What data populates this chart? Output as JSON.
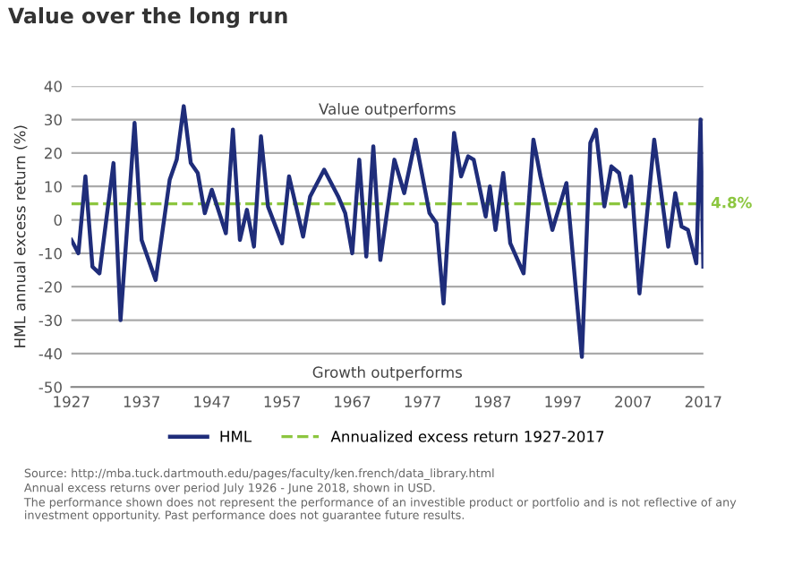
{
  "chart_data": {
    "type": "line",
    "title": "Value over the long run",
    "ylabel": "HML annual excess return (%)",
    "series": [
      {
        "name": "HML",
        "color": "#1f2d7a",
        "x": [
          1927,
          1928,
          1929,
          1930,
          1931,
          1933,
          1934,
          1936,
          1937,
          1939,
          1941,
          1942,
          1943,
          1944,
          1945,
          1946,
          1947,
          1949,
          1950,
          1951,
          1952,
          1953,
          1954,
          1955,
          1957,
          1958,
          1960,
          1961,
          1963,
          1965,
          1966,
          1967,
          1968,
          1969,
          1970,
          1971,
          1973,
          1974.4,
          1976,
          1978,
          1979,
          1980,
          1981.5,
          1982.5,
          1983.5,
          1984.3,
          1986,
          1986.6,
          1987.4,
          1988.5,
          1989.5,
          1991.4,
          1992.8,
          1993.8,
          1995.5,
          1997.5,
          1999.7,
          2000.9,
          2001.7,
          2002.9,
          2003.9,
          2005,
          2005.9,
          2006.7,
          2007.9,
          2010,
          2012,
          2013,
          2013.9,
          2014.8,
          2016,
          2016.6,
          2017
        ],
        "values": [
          -6,
          -10,
          13,
          -14,
          -16,
          17,
          -30,
          29,
          -6,
          -18,
          12,
          18,
          34,
          17,
          14,
          2,
          9,
          -4,
          27,
          -6,
          3,
          -8,
          25,
          4,
          -7,
          13,
          -5,
          7,
          15,
          7,
          2,
          -10,
          18,
          -11,
          22,
          -12,
          18,
          8,
          24,
          2,
          -1,
          -25,
          26,
          13,
          19,
          18,
          1,
          10,
          -3,
          14,
          -7,
          -16,
          24,
          13,
          -3,
          11,
          -41,
          23,
          27,
          4,
          16,
          14,
          4,
          13,
          -22,
          24,
          -8,
          8,
          -2,
          -3,
          -13,
          30,
          -14
        ]
      }
    ],
    "ref_lines": [
      {
        "axis": "y",
        "value": 4.8,
        "label": "Annualized excess return 1927-2017",
        "color": "#8cc63f",
        "line_style": "dashed"
      }
    ],
    "xlim": [
      1927,
      2017
    ],
    "xticks": [
      1927,
      1937,
      1947,
      1957,
      1967,
      1977,
      1987,
      1997,
      2007,
      2017
    ],
    "ylim": [
      -50,
      40
    ],
    "yticks": [
      -50,
      -40,
      -30,
      -20,
      -10,
      0,
      10,
      20,
      30,
      40
    ],
    "grid": "y",
    "legend": "bottom",
    "line_style": "solid",
    "marker": "none",
    "annotations": [
      "Value outperforms",
      "Growth outperforms",
      {
        "text": "4.8%",
        "x": 2017,
        "y": 4.8
      },
      "Source: http://mba.tuck.dartmouth.edu/pages/faculty/ken.french/data_library.html",
      "Annual excess returns over period July 1926 - June 2018, shown in USD.",
      "The performance shown does not represent the performance of an investible product or portfolio and is not reflective of any investment opportunity. Past performance does not guarantee future results."
    ]
  }
}
